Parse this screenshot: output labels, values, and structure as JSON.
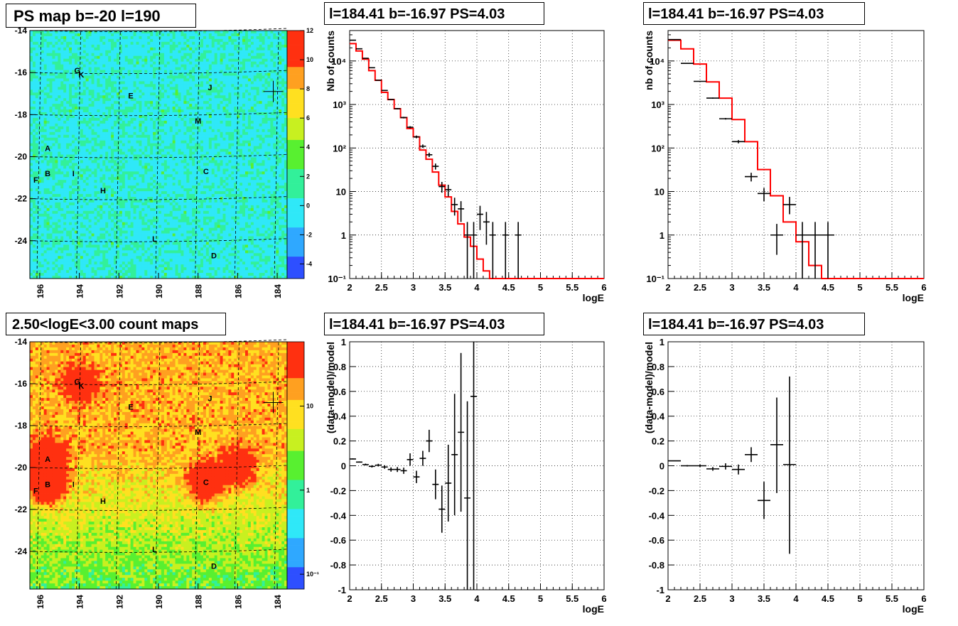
{
  "titles": {
    "map_top": "PS map b=-20 l=190",
    "map_bottom": "2.50<logE<3.00 count maps",
    "spec_left": "l=184.41 b=-16.97 PS=4.03",
    "spec_right": "l=184.41 b=-16.97 PS=4.03",
    "res_left": "l=184.41 b=-16.97 PS=4.03",
    "res_right": "l=184.41 b=-16.97 PS=4.03"
  },
  "chart_data": [
    {
      "type": "heatmap",
      "title": "PS map b=-20 l=190",
      "xlim": [
        196.5,
        183.5
      ],
      "ylim": [
        -25.8,
        -14.0
      ],
      "xticks": [
        196,
        194,
        192,
        190,
        188,
        186,
        184
      ],
      "yticks": [
        -14,
        -16,
        -18,
        -20,
        -22,
        -24
      ],
      "colorbar": {
        "scale": "linear",
        "range": [
          -5,
          12
        ],
        "ticks": [
          "12",
          "10",
          "8",
          "6",
          "4",
          "2",
          "0",
          "-2",
          "-4"
        ]
      },
      "sources": [
        {
          "label": "G",
          "l": 194.1,
          "b": -15.9
        },
        {
          "label": "K",
          "l": 193.9,
          "b": -16.1
        },
        {
          "label": "J",
          "l": 187.4,
          "b": -16.7
        },
        {
          "label": "E",
          "l": 191.4,
          "b": -17.1
        },
        {
          "label": "M",
          "l": 188.0,
          "b": -18.3
        },
        {
          "label": "A",
          "l": 195.6,
          "b": -19.6
        },
        {
          "label": "B",
          "l": 195.6,
          "b": -20.8
        },
        {
          "label": "I",
          "l": 194.3,
          "b": -20.8
        },
        {
          "label": "C",
          "l": 187.6,
          "b": -20.7
        },
        {
          "label": "F",
          "l": 196.2,
          "b": -21.1
        },
        {
          "label": "H",
          "l": 192.8,
          "b": -21.6
        },
        {
          "label": "L",
          "l": 190.2,
          "b": -23.9
        },
        {
          "label": "D",
          "l": 187.2,
          "b": -24.7
        }
      ],
      "marker": {
        "l": 184.2,
        "b": -16.9
      }
    },
    {
      "type": "heatmap",
      "title": "2.50<logE<3.00 count maps",
      "xlim": [
        196.5,
        183.5
      ],
      "ylim": [
        -25.8,
        -14.0
      ],
      "xticks": [
        196,
        194,
        192,
        190,
        188,
        186,
        184
      ],
      "yticks": [
        -14,
        -16,
        -18,
        -20,
        -22,
        -24
      ],
      "colorbar": {
        "scale": "log",
        "ticks": [
          "10",
          "1",
          "10⁻¹"
        ]
      },
      "sources": [
        {
          "label": "G",
          "l": 194.1,
          "b": -15.9
        },
        {
          "label": "K",
          "l": 193.9,
          "b": -16.1
        },
        {
          "label": "J",
          "l": 187.4,
          "b": -16.7
        },
        {
          "label": "E",
          "l": 191.4,
          "b": -17.1
        },
        {
          "label": "M",
          "l": 188.0,
          "b": -18.3
        },
        {
          "label": "A",
          "l": 195.6,
          "b": -19.6
        },
        {
          "label": "B",
          "l": 195.6,
          "b": -20.8
        },
        {
          "label": "I",
          "l": 194.3,
          "b": -20.8
        },
        {
          "label": "C",
          "l": 187.6,
          "b": -20.7
        },
        {
          "label": "F",
          "l": 196.2,
          "b": -21.1
        },
        {
          "label": "H",
          "l": 192.8,
          "b": -21.6
        },
        {
          "label": "L",
          "l": 190.2,
          "b": -23.9
        },
        {
          "label": "D",
          "l": 187.2,
          "b": -24.7
        }
      ],
      "marker": {
        "l": 184.2,
        "b": -16.9
      }
    },
    {
      "type": "line",
      "title": "l=184.41 b=-16.97 PS=4.03",
      "xlabel": "logE",
      "ylabel": "Nb of counts",
      "xlim": [
        2,
        6
      ],
      "ylim": [
        0.1,
        50000
      ],
      "yscale": "log",
      "xticks": [
        "2",
        "2.5",
        "3",
        "3.5",
        "4",
        "4.5",
        "5",
        "5.5",
        "6"
      ],
      "yticks": [
        {
          "v": 0.1,
          "t": "10⁻¹"
        },
        {
          "v": 1,
          "t": "1"
        },
        {
          "v": 10,
          "t": "10"
        },
        {
          "v": 100,
          "t": "10²"
        },
        {
          "v": 1000,
          "t": "10³"
        },
        {
          "v": 10000,
          "t": "10⁴"
        }
      ],
      "grid": true,
      "model": {
        "edges": [
          2.0,
          2.1,
          2.2,
          2.3,
          2.4,
          2.5,
          2.6,
          2.7,
          2.8,
          2.9,
          3.0,
          3.1,
          3.2,
          3.3,
          3.4,
          3.5,
          3.6,
          3.7,
          3.8,
          3.9,
          4.0,
          4.1,
          4.2,
          4.3,
          6.0
        ],
        "values": [
          25000,
          17000,
          11000,
          6000,
          3600,
          1900,
          1300,
          800,
          500,
          280,
          180,
          90,
          55,
          28,
          14,
          7.5,
          3.5,
          1.8,
          0.9,
          0.55,
          0.28,
          0.15,
          0.1,
          0.1
        ]
      },
      "data": [
        {
          "x": 2.05,
          "y": 30000,
          "ylo": 29500,
          "yhi": 30500
        },
        {
          "x": 2.15,
          "y": 19000,
          "ylo": 18600,
          "yhi": 19400
        },
        {
          "x": 2.25,
          "y": 11500,
          "ylo": 11300,
          "yhi": 11700
        },
        {
          "x": 2.35,
          "y": 7000,
          "ylo": 6800,
          "yhi": 7200
        },
        {
          "x": 2.45,
          "y": 3600,
          "ylo": 3500,
          "yhi": 3700
        },
        {
          "x": 2.55,
          "y": 2100,
          "ylo": 2050,
          "yhi": 2150
        },
        {
          "x": 2.65,
          "y": 1300,
          "ylo": 1260,
          "yhi": 1340
        },
        {
          "x": 2.75,
          "y": 800,
          "ylo": 770,
          "yhi": 830
        },
        {
          "x": 2.85,
          "y": 500,
          "ylo": 480,
          "yhi": 520
        },
        {
          "x": 2.95,
          "y": 300,
          "ylo": 283,
          "yhi": 317
        },
        {
          "x": 3.05,
          "y": 180,
          "ylo": 167,
          "yhi": 193
        },
        {
          "x": 3.15,
          "y": 110,
          "ylo": 100,
          "yhi": 120
        },
        {
          "x": 3.25,
          "y": 70,
          "ylo": 62,
          "yhi": 78
        },
        {
          "x": 3.35,
          "y": 38,
          "ylo": 32,
          "yhi": 44
        },
        {
          "x": 3.45,
          "y": 13,
          "ylo": 9.4,
          "yhi": 16.6
        },
        {
          "x": 3.55,
          "y": 11,
          "ylo": 7.7,
          "yhi": 14.3
        },
        {
          "x": 3.65,
          "y": 5,
          "ylo": 2.8,
          "yhi": 7.2
        },
        {
          "x": 3.75,
          "y": 4,
          "ylo": 2.0,
          "yhi": 6.0
        },
        {
          "x": 3.85,
          "y": 1,
          "ylo": 0.1,
          "yhi": 2.0
        },
        {
          "x": 3.95,
          "y": 1,
          "ylo": 0.1,
          "yhi": 2.0
        },
        {
          "x": 4.05,
          "y": 3,
          "ylo": 1.3,
          "yhi": 4.7
        },
        {
          "x": 4.15,
          "y": 2,
          "ylo": 0.6,
          "yhi": 3.4
        },
        {
          "x": 4.25,
          "y": 1,
          "ylo": 0.1,
          "yhi": 2.0
        },
        {
          "x": 4.45,
          "y": 1,
          "ylo": 0.1,
          "yhi": 2.0
        },
        {
          "x": 4.65,
          "y": 1,
          "ylo": 0.1,
          "yhi": 2.0
        }
      ],
      "xerr": 0.05
    },
    {
      "type": "line",
      "title": "l=184.41 b=-16.97 PS=4.03",
      "xlabel": "logE",
      "ylabel": "nb of counts",
      "xlim": [
        2,
        6
      ],
      "ylim": [
        0.1,
        50000
      ],
      "yscale": "log",
      "xticks": [
        "2",
        "2.5",
        "3",
        "3.5",
        "4",
        "4.5",
        "5",
        "5.5",
        "6"
      ],
      "yticks": [
        {
          "v": 0.1,
          "t": "10⁻¹"
        },
        {
          "v": 1,
          "t": "1"
        },
        {
          "v": 10,
          "t": "10"
        },
        {
          "v": 100,
          "t": "10²"
        },
        {
          "v": 1000,
          "t": "10³"
        },
        {
          "v": 10000,
          "t": "10⁴"
        }
      ],
      "grid": true,
      "model": {
        "edges": [
          2.0,
          2.2,
          2.4,
          2.6,
          2.8,
          3.0,
          3.2,
          3.4,
          3.6,
          3.8,
          4.0,
          4.2,
          4.4,
          6.0
        ],
        "values": [
          30000,
          19000,
          8500,
          3300,
          1400,
          450,
          140,
          32,
          8,
          2,
          0.7,
          0.2,
          0.1
        ]
      },
      "data": [
        {
          "x": 2.1,
          "y": 31000,
          "ylo": 30000,
          "yhi": 32000
        },
        {
          "x": 2.3,
          "y": 8800,
          "ylo": 8600,
          "yhi": 9000
        },
        {
          "x": 2.5,
          "y": 3400,
          "ylo": 3300,
          "yhi": 3500
        },
        {
          "x": 2.7,
          "y": 1400,
          "ylo": 1350,
          "yhi": 1450
        },
        {
          "x": 2.9,
          "y": 470,
          "ylo": 450,
          "yhi": 490
        },
        {
          "x": 3.1,
          "y": 140,
          "ylo": 128,
          "yhi": 152
        },
        {
          "x": 3.3,
          "y": 22,
          "ylo": 17,
          "yhi": 27
        },
        {
          "x": 3.5,
          "y": 9,
          "ylo": 6,
          "yhi": 12
        },
        {
          "x": 3.7,
          "y": 1,
          "ylo": 0.35,
          "yhi": 1.8
        },
        {
          "x": 3.9,
          "y": 5,
          "ylo": 3,
          "yhi": 7.5
        },
        {
          "x": 4.1,
          "y": 1,
          "ylo": 0.1,
          "yhi": 2.0
        },
        {
          "x": 4.3,
          "y": 1,
          "ylo": 0.1,
          "yhi": 2.0
        },
        {
          "x": 4.5,
          "y": 1,
          "ylo": 0.1,
          "yhi": 2.0
        }
      ],
      "xerr": 0.1
    },
    {
      "type": "scatter",
      "title": "l=184.41 b=-16.97 PS=4.03",
      "xlabel": "logE",
      "ylabel": "(data-model)/model",
      "xlim": [
        2,
        6
      ],
      "ylim": [
        -1,
        1
      ],
      "xticks": [
        "2",
        "2.5",
        "3",
        "3.5",
        "4",
        "4.5",
        "5",
        "5.5",
        "6"
      ],
      "yticks": [
        "-1",
        "-0.8",
        "-0.6",
        "-0.4",
        "-0.2",
        "0",
        "0.2",
        "0.4",
        "0.6",
        "0.8",
        "1"
      ],
      "grid": true,
      "data": [
        {
          "x": 2.05,
          "y": 0.055,
          "ylo": 0.05,
          "yhi": 0.06
        },
        {
          "x": 2.15,
          "y": 0.03,
          "ylo": 0.025,
          "yhi": 0.035
        },
        {
          "x": 2.25,
          "y": 0.01,
          "ylo": 0.003,
          "yhi": 0.017
        },
        {
          "x": 2.35,
          "y": -0.005,
          "ylo": -0.014,
          "yhi": 0.004
        },
        {
          "x": 2.45,
          "y": 0.005,
          "ylo": -0.006,
          "yhi": 0.016
        },
        {
          "x": 2.55,
          "y": -0.01,
          "ylo": -0.024,
          "yhi": 0.004
        },
        {
          "x": 2.65,
          "y": -0.03,
          "ylo": -0.047,
          "yhi": -0.013
        },
        {
          "x": 2.75,
          "y": -0.03,
          "ylo": -0.05,
          "yhi": -0.01
        },
        {
          "x": 2.85,
          "y": -0.04,
          "ylo": -0.065,
          "yhi": -0.015
        },
        {
          "x": 2.95,
          "y": 0.05,
          "ylo": 0.0,
          "yhi": 0.1
        },
        {
          "x": 3.05,
          "y": -0.09,
          "ylo": -0.14,
          "yhi": -0.04
        },
        {
          "x": 3.15,
          "y": 0.06,
          "ylo": 0.0,
          "yhi": 0.12
        },
        {
          "x": 3.25,
          "y": 0.2,
          "ylo": 0.11,
          "yhi": 0.29
        },
        {
          "x": 3.35,
          "y": -0.15,
          "ylo": -0.27,
          "yhi": -0.03
        },
        {
          "x": 3.45,
          "y": -0.35,
          "ylo": -0.54,
          "yhi": -0.16
        },
        {
          "x": 3.55,
          "y": -0.14,
          "ylo": -0.45,
          "yhi": 0.17
        },
        {
          "x": 3.65,
          "y": 0.09,
          "ylo": -0.4,
          "yhi": 0.58
        },
        {
          "x": 3.75,
          "y": 0.27,
          "ylo": -0.37,
          "yhi": 0.91
        },
        {
          "x": 3.85,
          "y": -0.26,
          "ylo": -1.0,
          "yhi": 0.52
        },
        {
          "x": 3.95,
          "y": 0.56,
          "ylo": -1.0,
          "yhi": 1.0
        }
      ],
      "xerr": 0.05
    },
    {
      "type": "scatter",
      "title": "l=184.41 b=-16.97 PS=4.03",
      "xlabel": "logE",
      "ylabel": "(data-model)/model",
      "xlim": [
        2,
        6
      ],
      "ylim": [
        -1,
        1
      ],
      "xticks": [
        "2",
        "2.5",
        "3",
        "3.5",
        "4",
        "4.5",
        "5",
        "5.5",
        "6"
      ],
      "yticks": [
        "-1",
        "-0.8",
        "-0.6",
        "-0.4",
        "-0.2",
        "0",
        "0.2",
        "0.4",
        "0.6",
        "0.8",
        "1"
      ],
      "grid": true,
      "data": [
        {
          "x": 2.1,
          "y": 0.04,
          "ylo": 0.036,
          "yhi": 0.044
        },
        {
          "x": 2.3,
          "y": 0.0,
          "ylo": -0.006,
          "yhi": 0.006
        },
        {
          "x": 2.5,
          "y": 0.0,
          "ylo": -0.01,
          "yhi": 0.01
        },
        {
          "x": 2.7,
          "y": -0.025,
          "ylo": -0.04,
          "yhi": -0.01
        },
        {
          "x": 2.9,
          "y": -0.005,
          "ylo": -0.03,
          "yhi": 0.02
        },
        {
          "x": 3.1,
          "y": -0.03,
          "ylo": -0.07,
          "yhi": 0.01
        },
        {
          "x": 3.3,
          "y": 0.09,
          "ylo": 0.03,
          "yhi": 0.15
        },
        {
          "x": 3.5,
          "y": -0.28,
          "ylo": -0.43,
          "yhi": -0.13
        },
        {
          "x": 3.7,
          "y": 0.17,
          "ylo": -0.22,
          "yhi": 0.55
        },
        {
          "x": 3.9,
          "y": 0.01,
          "ylo": -0.71,
          "yhi": 0.72
        }
      ],
      "xerr": 0.1
    }
  ],
  "colors": {
    "model_line": "#ff0000",
    "grid": "#000000",
    "marker": "#000000"
  }
}
